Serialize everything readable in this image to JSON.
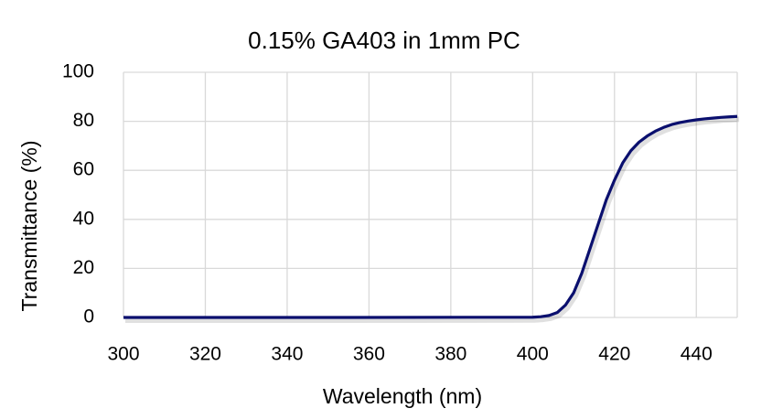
{
  "chart_data": {
    "type": "line",
    "title": "0.15% GA403 in 1mm PC",
    "x_label": "Wavelength (nm)",
    "y_label": "Transmittance (%)",
    "x": [
      300,
      350,
      400,
      402,
      404,
      406,
      408,
      410,
      412,
      414,
      416,
      418,
      420,
      422,
      424,
      426,
      428,
      430,
      432,
      434,
      436,
      438,
      440,
      442,
      444,
      446,
      448,
      450
    ],
    "series": [
      {
        "color": "#0a0f6e",
        "values": [
          0,
          0,
          0.1,
          0.3,
          0.8,
          2,
          5,
          10,
          18,
          28,
          38,
          48,
          56,
          63,
          68,
          71.5,
          74,
          76,
          77.5,
          78.7,
          79.5,
          80.1,
          80.6,
          81,
          81.3,
          81.6,
          81.8,
          82
        ]
      }
    ],
    "xlim": [
      300,
      450
    ],
    "xticks": [
      300,
      320,
      340,
      360,
      380,
      400,
      420,
      440
    ],
    "ylim": [
      0,
      100
    ],
    "yticks": [
      0,
      20,
      40,
      60,
      80,
      100
    ],
    "grid": true
  }
}
